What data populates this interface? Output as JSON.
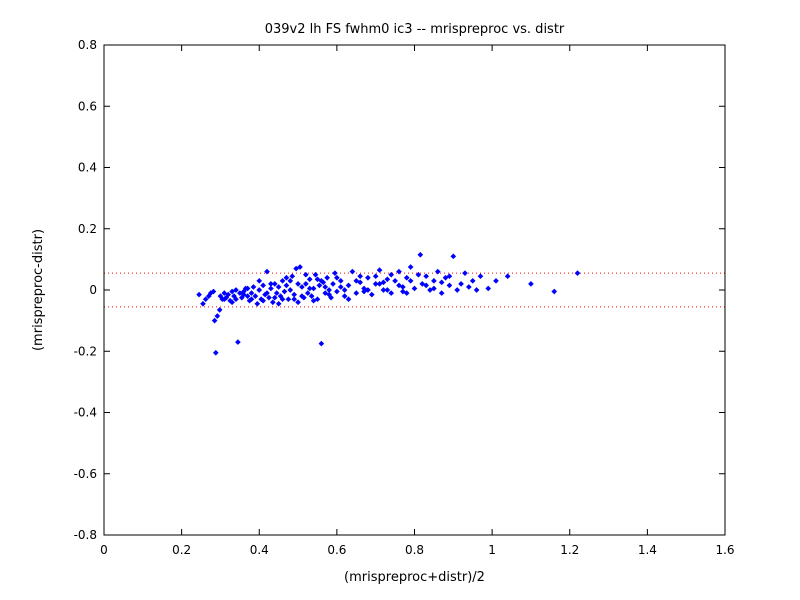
{
  "chart_data": {
    "type": "scatter",
    "title": "039v2 lh FS fwhm0 ic3 -- mrispreproc vs. distr",
    "xlabel": "(mrispreproc+distr)/2",
    "ylabel": "(mrispreproc-distr)",
    "xlim": [
      0,
      1.6
    ],
    "ylim": [
      -0.8,
      0.8
    ],
    "xticks": [
      "0",
      "0.2",
      "0.4",
      "0.6",
      "0.8",
      "1",
      "1.2",
      "1.4",
      "1.6"
    ],
    "yticks": [
      "0.8",
      "0.6",
      "0.4",
      "0.2",
      "0",
      "-0.2",
      "-0.4",
      "-0.6",
      "-0.8"
    ],
    "grid": false,
    "marker_color": "#0000ff",
    "reference_lines": [
      {
        "y": 0.055,
        "color": "#ff0000",
        "style": "dotted"
      },
      {
        "y": -0.055,
        "color": "#ff0000",
        "style": "dotted"
      }
    ],
    "points": [
      [
        0.245,
        -0.015
      ],
      [
        0.255,
        -0.045
      ],
      [
        0.262,
        -0.03
      ],
      [
        0.27,
        -0.02
      ],
      [
        0.275,
        -0.01
      ],
      [
        0.282,
        -0.005
      ],
      [
        0.285,
        -0.1
      ],
      [
        0.288,
        -0.205
      ],
      [
        0.292,
        -0.085
      ],
      [
        0.298,
        -0.065
      ],
      [
        0.3,
        -0.02
      ],
      [
        0.305,
        -0.03
      ],
      [
        0.31,
        -0.01
      ],
      [
        0.315,
        -0.025
      ],
      [
        0.32,
        -0.015
      ],
      [
        0.325,
        -0.035
      ],
      [
        0.33,
        -0.005
      ],
      [
        0.335,
        -0.02
      ],
      [
        0.34,
        -0.03
      ],
      [
        0.345,
        -0.17
      ],
      [
        0.35,
        -0.01
      ],
      [
        0.355,
        -0.025
      ],
      [
        0.36,
        -0.015
      ],
      [
        0.365,
        0.005
      ],
      [
        0.37,
        -0.02
      ],
      [
        0.375,
        -0.035
      ],
      [
        0.38,
        -0.01
      ],
      [
        0.385,
        0.01
      ],
      [
        0.39,
        -0.02
      ],
      [
        0.395,
        -0.045
      ],
      [
        0.4,
        0.0
      ],
      [
        0.405,
        -0.03
      ],
      [
        0.41,
        0.015
      ],
      [
        0.415,
        -0.015
      ],
      [
        0.42,
        0.06
      ],
      [
        0.425,
        -0.025
      ],
      [
        0.43,
        0.005
      ],
      [
        0.435,
        -0.04
      ],
      [
        0.44,
        0.02
      ],
      [
        0.445,
        -0.01
      ],
      [
        0.45,
        0.01
      ],
      [
        0.455,
        -0.02
      ],
      [
        0.46,
        0.03
      ],
      [
        0.465,
        -0.005
      ],
      [
        0.47,
        0.015
      ],
      [
        0.475,
        -0.03
      ],
      [
        0.48,
        0.0
      ],
      [
        0.485,
        0.045
      ],
      [
        0.49,
        -0.015
      ],
      [
        0.495,
        0.07
      ],
      [
        0.5,
        -0.04
      ],
      [
        0.505,
        0.075
      ],
      [
        0.51,
        0.01
      ],
      [
        0.515,
        -0.025
      ],
      [
        0.52,
        0.02
      ],
      [
        0.525,
        -0.01
      ],
      [
        0.53,
        0.035
      ],
      [
        0.535,
        -0.02
      ],
      [
        0.54,
        0.005
      ],
      [
        0.545,
        0.05
      ],
      [
        0.55,
        -0.03
      ],
      [
        0.555,
        0.015
      ],
      [
        0.56,
        -0.175
      ],
      [
        0.565,
        0.025
      ],
      [
        0.57,
        -0.01
      ],
      [
        0.575,
        0.04
      ],
      [
        0.58,
        0.0
      ],
      [
        0.585,
        -0.025
      ],
      [
        0.59,
        0.02
      ],
      [
        0.595,
        0.055
      ],
      [
        0.6,
        -0.005
      ],
      [
        0.61,
        0.03
      ],
      [
        0.62,
        -0.02
      ],
      [
        0.63,
        0.015
      ],
      [
        0.64,
        0.06
      ],
      [
        0.65,
        -0.01
      ],
      [
        0.66,
        0.025
      ],
      [
        0.67,
        0.005
      ],
      [
        0.68,
        0.04
      ],
      [
        0.69,
        -0.015
      ],
      [
        0.7,
        0.02
      ],
      [
        0.71,
        0.065
      ],
      [
        0.72,
        0.0
      ],
      [
        0.73,
        0.035
      ],
      [
        0.74,
        -0.01
      ],
      [
        0.75,
        0.03
      ],
      [
        0.76,
        0.06
      ],
      [
        0.77,
        0.01
      ],
      [
        0.78,
        0.04
      ],
      [
        0.79,
        0.075
      ],
      [
        0.8,
        0.005
      ],
      [
        0.815,
        0.115
      ],
      [
        0.82,
        0.02
      ],
      [
        0.83,
        0.045
      ],
      [
        0.84,
        0.0
      ],
      [
        0.85,
        0.03
      ],
      [
        0.86,
        0.06
      ],
      [
        0.87,
        -0.01
      ],
      [
        0.88,
        0.04
      ],
      [
        0.89,
        0.015
      ],
      [
        0.9,
        0.11
      ],
      [
        0.91,
        0.0
      ],
      [
        0.93,
        0.055
      ],
      [
        0.95,
        0.03
      ],
      [
        0.97,
        0.045
      ],
      [
        0.99,
        0.005
      ],
      [
        1.01,
        0.03
      ],
      [
        1.04,
        0.045
      ],
      [
        1.1,
        0.02
      ],
      [
        1.16,
        -0.005
      ],
      [
        1.22,
        0.055
      ],
      [
        0.31,
        -0.03
      ],
      [
        0.33,
        -0.04
      ],
      [
        0.36,
        -0.005
      ],
      [
        0.38,
        -0.03
      ],
      [
        0.41,
        -0.035
      ],
      [
        0.43,
        0.02
      ],
      [
        0.46,
        -0.03
      ],
      [
        0.48,
        0.03
      ],
      [
        0.51,
        -0.02
      ],
      [
        0.53,
        0.005
      ],
      [
        0.56,
        0.03
      ],
      [
        0.58,
        -0.015
      ],
      [
        0.61,
        0.01
      ],
      [
        0.63,
        -0.03
      ],
      [
        0.66,
        0.045
      ],
      [
        0.68,
        0.0
      ],
      [
        0.71,
        0.02
      ],
      [
        0.73,
        0.0
      ],
      [
        0.76,
        0.015
      ],
      [
        0.78,
        -0.01
      ],
      [
        0.34,
        0.0
      ],
      [
        0.37,
        0.005
      ],
      [
        0.4,
        0.03
      ],
      [
        0.42,
        -0.01
      ],
      [
        0.44,
        -0.025
      ],
      [
        0.47,
        0.04
      ],
      [
        0.5,
        0.02
      ],
      [
        0.52,
        0.05
      ],
      [
        0.54,
        -0.035
      ],
      [
        0.57,
        0.01
      ],
      [
        0.6,
        0.04
      ],
      [
        0.62,
        0.0
      ],
      [
        0.65,
        0.03
      ],
      [
        0.67,
        -0.005
      ],
      [
        0.7,
        0.045
      ],
      [
        0.72,
        0.025
      ],
      [
        0.74,
        0.05
      ],
      [
        0.77,
        -0.005
      ],
      [
        0.79,
        0.03
      ],
      [
        0.81,
        0.05
      ],
      [
        0.83,
        0.015
      ],
      [
        0.85,
        0.005
      ],
      [
        0.87,
        0.025
      ],
      [
        0.89,
        0.045
      ],
      [
        0.92,
        0.02
      ],
      [
        0.94,
        0.01
      ],
      [
        0.96,
        0.0
      ],
      [
        0.45,
        -0.045
      ],
      [
        0.49,
        -0.03
      ],
      [
        0.55,
        0.035
      ]
    ]
  }
}
